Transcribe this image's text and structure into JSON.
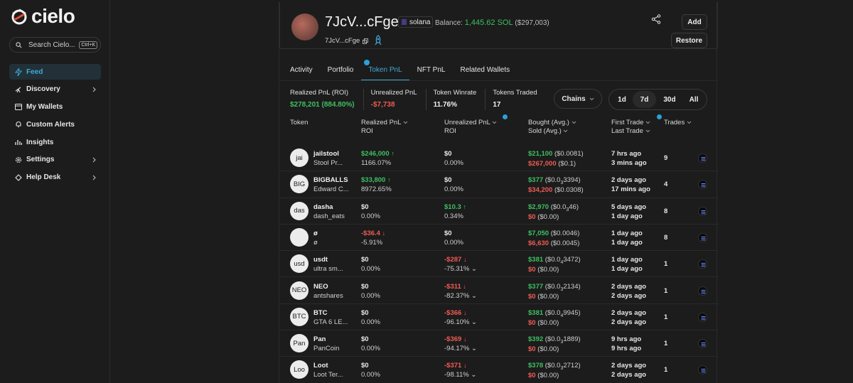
{
  "app": {
    "brand": "cielo"
  },
  "search": {
    "placeholder": "Search Cielo...",
    "shortcut": "Ctrl+K"
  },
  "sidebar": {
    "items": [
      {
        "label": "Feed",
        "icon": "bolt-icon",
        "active": true
      },
      {
        "label": "Discovery",
        "icon": "telescope-icon",
        "has_submenu": true
      },
      {
        "label": "My Wallets",
        "icon": "wallet-icon"
      },
      {
        "label": "Custom Alerts",
        "icon": "bell-icon"
      },
      {
        "label": "Insights",
        "icon": "bar-chart-icon"
      },
      {
        "label": "Settings",
        "icon": "gear-icon",
        "has_submenu": true
      },
      {
        "label": "Help Desk",
        "icon": "ticket-icon",
        "has_submenu": true
      }
    ]
  },
  "profile": {
    "name": "7JcV...cFge",
    "chain": "solana",
    "balance_label": "Balance:",
    "balance_sol": "1,445.62 SOL",
    "balance_usd": "($297,003)",
    "address": "7JcV...cFge",
    "add_label": "Add",
    "restore_label": "Restore"
  },
  "tabs": [
    "Activity",
    "Portfolio",
    "Token PnL",
    "NFT PnL",
    "Related Wallets"
  ],
  "active_tab": "Token PnL",
  "stats": {
    "realized": {
      "label": "Realized PnL (ROI)",
      "value": "$278,201 (884.80%)"
    },
    "unrealized": {
      "label": "Unrealized PnL",
      "value": "-$7,738"
    },
    "winrate": {
      "label": "Token Winrate",
      "value": "11.76%"
    },
    "traded": {
      "label": "Tokens Traded",
      "value": "17"
    }
  },
  "filters": {
    "chains_label": "Chains",
    "ranges": [
      "1d",
      "7d",
      "30d",
      "All"
    ],
    "active_range": "7d"
  },
  "table": {
    "headers": {
      "token": "Token",
      "realized": "Realized PnL",
      "realized_sub": "ROI",
      "unrealized": "Unrealized PnL",
      "unrealized_sub": "ROI",
      "bought": "Bought (Avg.)",
      "sold": "Sold (Avg.)",
      "first": "First Trade",
      "last": "Last Trade",
      "trades": "Trades"
    },
    "rows": [
      {
        "avatar": "jai",
        "symbol": "jailstool",
        "name": "Stool Pr...",
        "realized": "$246,000",
        "realized_dir": "up",
        "roi": "1166.07%",
        "unrealized": "$0",
        "unrealized_dir": "none",
        "uroi": "0.00%",
        "bought": "$21,100",
        "bought_avg_pre": "($0.0081)",
        "bought_avg_sub": "",
        "bought_avg_post": "",
        "sold": "$267,000",
        "sold_avg": "($0.1)",
        "first": "7 hrs ago",
        "last": "3 mins ago",
        "trades": "9"
      },
      {
        "avatar": "BIG",
        "symbol": "BIGBALLS",
        "name": "Edward C...",
        "realized": "$33,800",
        "realized_dir": "up",
        "roi": "8972.65%",
        "unrealized": "$0",
        "unrealized_dir": "none",
        "uroi": "0.00%",
        "bought": "$377",
        "bought_avg_pre": "($0.0",
        "bought_avg_sub": "3",
        "bought_avg_post": "3394)",
        "sold": "$34,200",
        "sold_avg": "($0.0308)",
        "first": "2 days ago",
        "last": "17 mins ago",
        "trades": "4"
      },
      {
        "avatar": "das",
        "symbol": "dasha",
        "name": "dash_eats",
        "realized": "$0",
        "realized_dir": "none",
        "roi": "0.00%",
        "unrealized": "$10.3",
        "unrealized_dir": "up",
        "uroi": "0.34%",
        "bought": "$2,970",
        "bought_avg_pre": "($0.0",
        "bought_avg_sub": "3",
        "bought_avg_post": "46)",
        "sold": "$0",
        "sold_avg": "($0.00)",
        "first": "5 days ago",
        "last": "1 day ago",
        "trades": "8"
      },
      {
        "avatar": "",
        "symbol": "ø",
        "name": "ø",
        "realized": "-$36.4",
        "realized_dir": "down",
        "roi": "-5.91%",
        "unrealized": "$0",
        "unrealized_dir": "none",
        "uroi": "0.00%",
        "bought": "$7,050",
        "bought_avg_pre": "($0.0046)",
        "bought_avg_sub": "",
        "bought_avg_post": "",
        "sold": "$6,630",
        "sold_avg": "($0.0045)",
        "first": "1 day ago",
        "last": "1 day ago",
        "trades": "8"
      },
      {
        "avatar": "usd",
        "symbol": "usdt",
        "name": "ultra sm...",
        "realized": "$0",
        "realized_dir": "none",
        "roi": "0.00%",
        "unrealized": "-$287",
        "unrealized_dir": "down",
        "uroi": "-75.31%",
        "bought": "$381",
        "bought_avg_pre": "($0.0",
        "bought_avg_sub": "4",
        "bought_avg_post": "3472)",
        "sold": "$0",
        "sold_avg": "($0.00)",
        "first": "1 day ago",
        "last": "1 day ago",
        "trades": "1"
      },
      {
        "avatar": "NEO",
        "symbol": "NEO",
        "name": "antshares",
        "realized": "$0",
        "realized_dir": "none",
        "roi": "0.00%",
        "unrealized": "-$311",
        "unrealized_dir": "down",
        "uroi": "-82.37%",
        "bought": "$377",
        "bought_avg_pre": "($0.0",
        "bought_avg_sub": "3",
        "bought_avg_post": "2134)",
        "sold": "$0",
        "sold_avg": "($0.00)",
        "first": "2 days ago",
        "last": "2 days ago",
        "trades": "1"
      },
      {
        "avatar": "BTC",
        "symbol": "BTC",
        "name": "GTA 6 LE...",
        "realized": "$0",
        "realized_dir": "none",
        "roi": "0.00%",
        "unrealized": "-$366",
        "unrealized_dir": "down",
        "uroi": "-96.10%",
        "bought": "$381",
        "bought_avg_pre": "($0.0",
        "bought_avg_sub": "4",
        "bought_avg_post": "9945)",
        "sold": "$0",
        "sold_avg": "($0.00)",
        "first": "2 days ago",
        "last": "2 days ago",
        "trades": "1"
      },
      {
        "avatar": "Pan",
        "symbol": "Pan",
        "name": "PanCoin",
        "realized": "$0",
        "realized_dir": "none",
        "roi": "0.00%",
        "unrealized": "-$369",
        "unrealized_dir": "down",
        "uroi": "-94.17%",
        "bought": "$392",
        "bought_avg_pre": "($0.0",
        "bought_avg_sub": "3",
        "bought_avg_post": "1889)",
        "sold": "$0",
        "sold_avg": "($0.00)",
        "first": "9 hrs ago",
        "last": "9 hrs ago",
        "trades": "1"
      },
      {
        "avatar": "Loo",
        "symbol": "Loot",
        "name": "Loot Ter...",
        "realized": "$0",
        "realized_dir": "none",
        "roi": "0.00%",
        "unrealized": "-$371",
        "unrealized_dir": "down",
        "uroi": "-98.11%",
        "bought": "$378",
        "bought_avg_pre": "($0.0",
        "bought_avg_sub": "3",
        "bought_avg_post": "2712)",
        "sold": "$0",
        "sold_avg": "($0.00)",
        "first": "2 days ago",
        "last": "2 days ago",
        "trades": "1"
      }
    ]
  },
  "colors": {
    "accent": "#3fa9d6",
    "positive": "#3fbf62",
    "negative": "#f05b53",
    "background": "#1c1c1c"
  }
}
